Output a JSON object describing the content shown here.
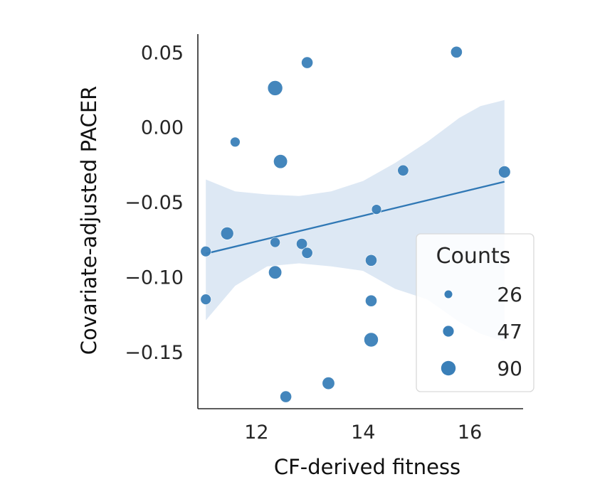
{
  "chart_data": {
    "type": "scatter",
    "title": "",
    "xlabel": "CF-derived fitness",
    "ylabel": "Covariate-adjusted PACER",
    "xlim": [
      10.9,
      17.0
    ],
    "ylim": [
      -0.188,
      0.062
    ],
    "x_ticks": [
      12,
      14,
      16
    ],
    "y_ticks": [
      0.05,
      0.0,
      -0.05,
      -0.1,
      -0.15
    ],
    "x_tick_labels": [
      "12",
      "14",
      "16"
    ],
    "y_tick_labels": [
      "0.05",
      "0.00",
      "−0.05",
      "−0.10",
      "−0.15"
    ],
    "grid": false,
    "point_color": "#3a7fb8",
    "line_color": "#3078b5",
    "band_color": "#dde8f4",
    "legend": {
      "title": "Counts",
      "placement": "lower-right",
      "entries": [
        {
          "label": "26",
          "count": 26
        },
        {
          "label": "47",
          "count": 47
        },
        {
          "label": "90",
          "count": 90
        }
      ]
    },
    "points": [
      {
        "x": 11.05,
        "y": -0.083,
        "count": 35
      },
      {
        "x": 11.05,
        "y": -0.115,
        "count": 35
      },
      {
        "x": 11.45,
        "y": -0.071,
        "count": 60
      },
      {
        "x": 11.6,
        "y": -0.01,
        "count": 28
      },
      {
        "x": 12.35,
        "y": 0.026,
        "count": 90
      },
      {
        "x": 12.35,
        "y": -0.077,
        "count": 30
      },
      {
        "x": 12.35,
        "y": -0.097,
        "count": 65
      },
      {
        "x": 12.45,
        "y": -0.023,
        "count": 75
      },
      {
        "x": 12.55,
        "y": -0.18,
        "count": 45
      },
      {
        "x": 12.85,
        "y": -0.078,
        "count": 40
      },
      {
        "x": 12.95,
        "y": 0.043,
        "count": 45
      },
      {
        "x": 12.95,
        "y": -0.084,
        "count": 40
      },
      {
        "x": 13.35,
        "y": -0.171,
        "count": 55
      },
      {
        "x": 14.15,
        "y": -0.089,
        "count": 45
      },
      {
        "x": 14.15,
        "y": -0.116,
        "count": 45
      },
      {
        "x": 14.15,
        "y": -0.142,
        "count": 80
      },
      {
        "x": 14.25,
        "y": -0.055,
        "count": 28
      },
      {
        "x": 14.75,
        "y": -0.029,
        "count": 40
      },
      {
        "x": 15.75,
        "y": 0.05,
        "count": 45
      },
      {
        "x": 16.65,
        "y": -0.03,
        "count": 50
      }
    ],
    "regression": {
      "x_range": [
        11.05,
        16.65
      ],
      "line": [
        -0.0845,
        -0.0365
      ],
      "band_x": [
        11.05,
        11.6,
        12.2,
        12.8,
        13.4,
        14.0,
        14.6,
        15.2,
        15.8,
        16.2,
        16.65
      ],
      "band_upper": [
        -0.035,
        -0.043,
        -0.045,
        -0.046,
        -0.043,
        -0.036,
        -0.024,
        -0.01,
        0.006,
        0.014,
        0.018
      ],
      "band_lower": [
        -0.129,
        -0.106,
        -0.093,
        -0.091,
        -0.093,
        -0.096,
        -0.108,
        -0.115,
        -0.13,
        -0.138,
        -0.143
      ]
    }
  }
}
